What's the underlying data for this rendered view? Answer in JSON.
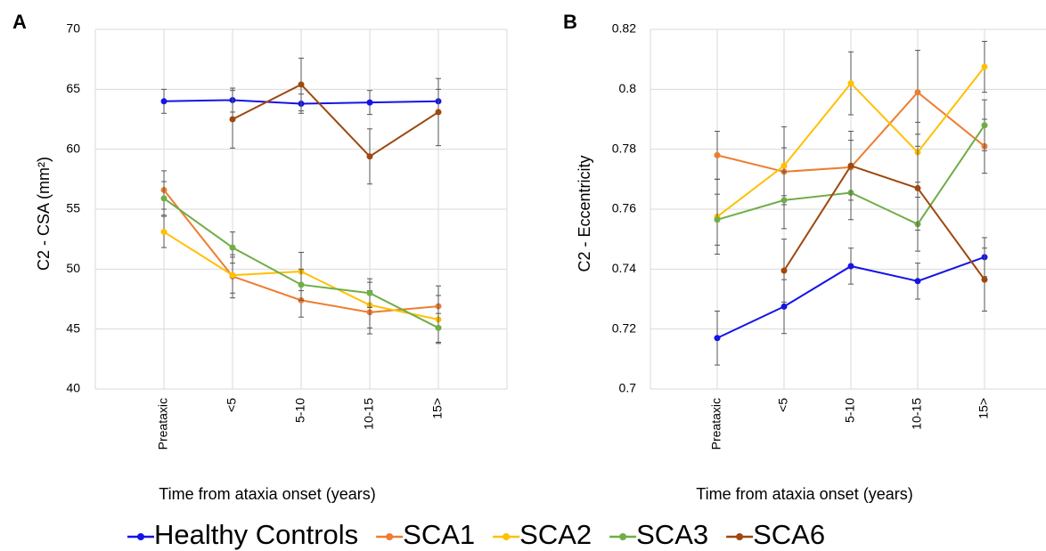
{
  "chart_data": [
    {
      "type": "line",
      "panel_label": "A",
      "ylabel": "C2 - CSA (mm²)",
      "xlabel": "Time from ataxia onset (years)",
      "categories": [
        "Preataxic",
        "<5",
        "5-10",
        "10-15",
        "15>"
      ],
      "ylim": [
        40,
        70
      ],
      "yticks": [
        40,
        45,
        50,
        55,
        60,
        65,
        70
      ],
      "grid": true,
      "series": [
        {
          "name": "Healthy Controls",
          "color": "#1414e6",
          "values": [
            64.0,
            64.1,
            63.8,
            63.9,
            64.0
          ],
          "errors": [
            1.0,
            1.0,
            0.8,
            1.0,
            1.0
          ]
        },
        {
          "name": "SCA1",
          "color": "#ed7d31",
          "values": [
            56.6,
            49.4,
            47.4,
            46.4,
            46.9
          ],
          "errors": [
            1.6,
            1.8,
            1.4,
            1.8,
            1.7
          ]
        },
        {
          "name": "SCA2",
          "color": "#ffc000",
          "values": [
            53.1,
            49.5,
            49.8,
            47.0,
            45.8
          ],
          "errors": [
            1.3,
            1.5,
            1.6,
            1.9,
            2.0
          ]
        },
        {
          "name": "SCA3",
          "color": "#70ad47",
          "values": [
            55.9,
            51.8,
            48.7,
            48.0,
            45.1
          ],
          "errors": [
            1.4,
            1.3,
            1.3,
            1.2,
            1.2
          ]
        },
        {
          "name": "SCA6",
          "color": "#9e480e",
          "values": [
            null,
            62.5,
            65.4,
            59.4,
            63.1
          ],
          "errors": [
            null,
            2.4,
            2.2,
            2.3,
            2.8
          ]
        }
      ]
    },
    {
      "type": "line",
      "panel_label": "B",
      "ylabel": "C2 - Eccentricity",
      "xlabel": "Time from ataxia onset (years)",
      "categories": [
        "Preataxic",
        "<5",
        "5-10",
        "10-15",
        "15>"
      ],
      "ylim": [
        0.7,
        0.82
      ],
      "yticks": [
        0.7,
        0.72,
        0.74,
        0.76,
        0.78,
        0.8,
        0.82
      ],
      "grid": true,
      "series": [
        {
          "name": "Healthy Controls",
          "color": "#1414e6",
          "values": [
            0.717,
            0.7275,
            0.741,
            0.736,
            0.744
          ],
          "errors": [
            0.009,
            0.009,
            0.006,
            0.006,
            0.0065
          ]
        },
        {
          "name": "SCA1",
          "color": "#ed7d31",
          "values": [
            0.778,
            0.7725,
            0.774,
            0.799,
            0.781
          ],
          "errors": [
            0.008,
            0.008,
            0.009,
            0.014,
            0.009
          ]
        },
        {
          "name": "SCA2",
          "color": "#ffc000",
          "values": [
            0.7575,
            0.7745,
            0.802,
            0.779,
            0.8075
          ],
          "errors": [
            0.0125,
            0.013,
            0.0105,
            0.01,
            0.0085
          ]
        },
        {
          "name": "SCA3",
          "color": "#70ad47",
          "values": [
            0.7565,
            0.763,
            0.7655,
            0.755,
            0.788
          ],
          "errors": [
            0.0085,
            0.0095,
            0.009,
            0.009,
            0.0085
          ]
        },
        {
          "name": "SCA6",
          "color": "#9e480e",
          "values": [
            null,
            0.7395,
            0.7745,
            0.767,
            0.7365
          ],
          "errors": [
            null,
            0.0105,
            0.0115,
            0.014,
            0.0105
          ]
        }
      ]
    }
  ]
}
